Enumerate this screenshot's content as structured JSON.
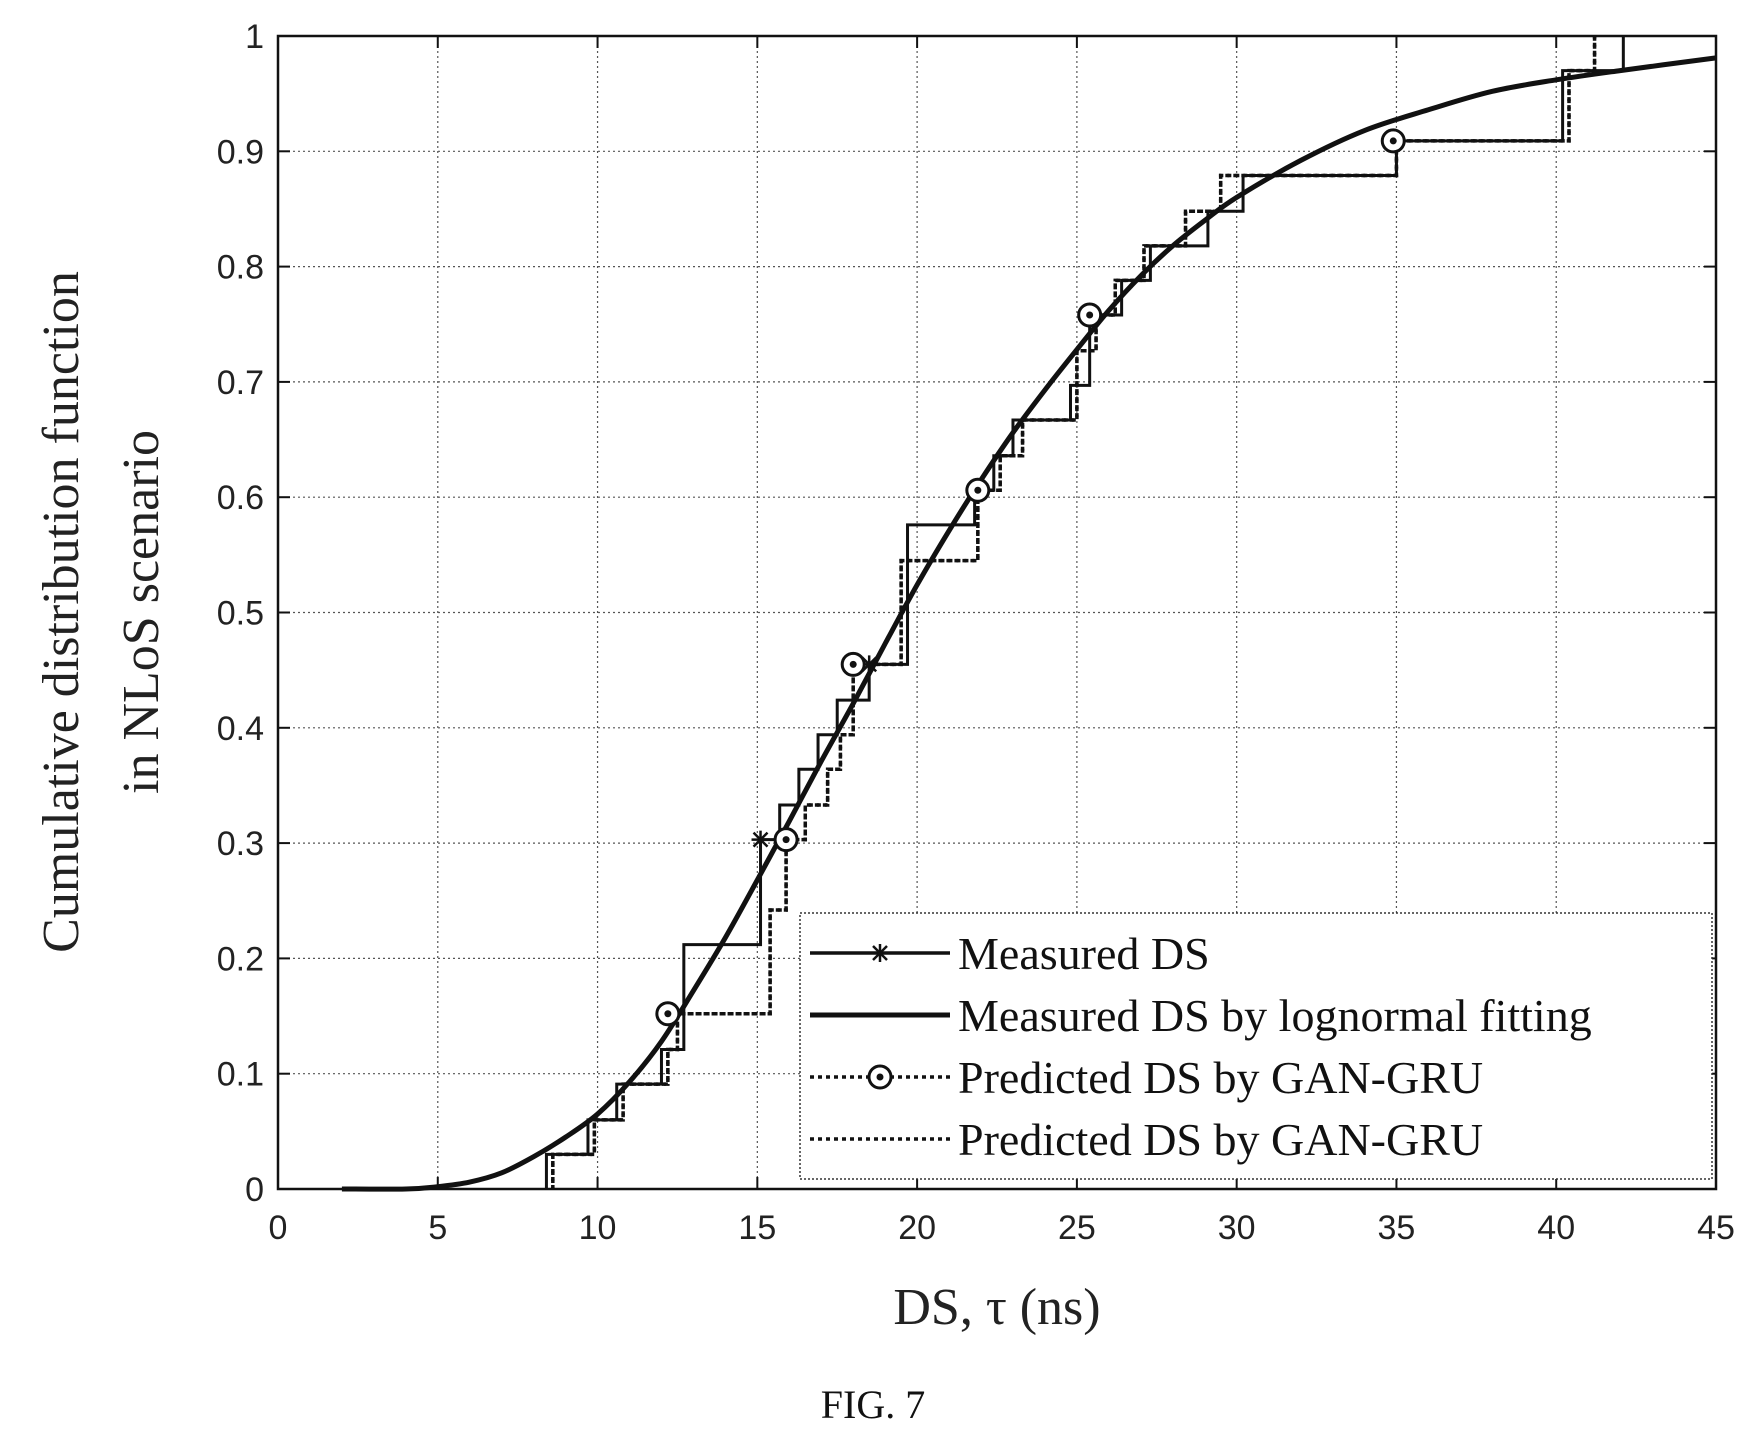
{
  "caption": "FIG. 7",
  "chart_data": {
    "type": "line",
    "title": "",
    "xlabel": "DS, τ (ns)",
    "ylabel_lines": [
      "Cumulative distribution function",
      "in NLoS scenario"
    ],
    "xlim": [
      0,
      45
    ],
    "ylim": [
      0,
      1
    ],
    "xticks": [
      0,
      5,
      10,
      15,
      20,
      25,
      30,
      35,
      40,
      45
    ],
    "yticks": [
      0,
      0.1,
      0.2,
      0.3,
      0.4,
      0.5,
      0.6,
      0.7,
      0.8,
      0.9,
      1
    ],
    "xtick_labels": [
      "0",
      "5",
      "10",
      "15",
      "20",
      "25",
      "30",
      "35",
      "40",
      "45"
    ],
    "ytick_labels": [
      "0",
      "0.1",
      "0.2",
      "0.3",
      "0.4",
      "0.5",
      "0.6",
      "0.7",
      "0.8",
      "0.9",
      "1"
    ],
    "grid": true,
    "legend_position": "bottom-right",
    "series": [
      {
        "name": "Measured DS",
        "style": "solid-step",
        "marker": "asterisk",
        "x": [
          8.4,
          9.7,
          10.6,
          12.0,
          12.7,
          15.1,
          15.7,
          16.3,
          16.9,
          17.5,
          18.5,
          19.7,
          21.8,
          22.4,
          23.0,
          24.8,
          25.4,
          26.4,
          27.3,
          29.1,
          30.2,
          35.0,
          40.2,
          42.1
        ],
        "y": [
          0.03,
          0.06,
          0.091,
          0.121,
          0.212,
          0.303,
          0.333,
          0.364,
          0.394,
          0.424,
          0.455,
          0.576,
          0.606,
          0.636,
          0.667,
          0.697,
          0.758,
          0.788,
          0.818,
          0.848,
          0.879,
          0.909,
          0.97,
          1.0
        ],
        "markers_x": [
          15.1,
          18.5
        ],
        "markers_y": [
          0.303,
          0.455
        ]
      },
      {
        "name": "Measured DS by lognormal fitting",
        "style": "solid-smooth",
        "x": [
          2,
          4,
          5,
          6,
          7,
          8,
          9,
          10,
          11,
          12,
          13,
          14,
          15,
          16,
          17,
          18,
          19,
          20,
          21,
          22,
          23,
          24,
          25,
          26,
          27,
          28,
          29,
          30,
          32,
          34,
          36,
          38,
          40,
          42,
          45
        ],
        "y": [
          0.0,
          0.0,
          0.002,
          0.006,
          0.014,
          0.028,
          0.045,
          0.065,
          0.093,
          0.128,
          0.172,
          0.218,
          0.268,
          0.319,
          0.371,
          0.421,
          0.473,
          0.524,
          0.571,
          0.615,
          0.656,
          0.693,
          0.728,
          0.762,
          0.792,
          0.818,
          0.84,
          0.86,
          0.892,
          0.918,
          0.936,
          0.952,
          0.962,
          0.97,
          0.981
        ]
      },
      {
        "name": "Predicted DS by GAN-GRU",
        "style": "dotted-step",
        "marker": "circle",
        "x": [
          8.6,
          9.9,
          10.8,
          12.2,
          12.5,
          15.4,
          15.9,
          16.5,
          17.2,
          17.6,
          18.0,
          19.5,
          21.9,
          22.6,
          23.3,
          25.0,
          25.6,
          26.2,
          27.1,
          28.4,
          29.5,
          35.0,
          40.4,
          41.2
        ],
        "y": [
          0.03,
          0.06,
          0.091,
          0.121,
          0.152,
          0.242,
          0.303,
          0.333,
          0.364,
          0.394,
          0.455,
          0.545,
          0.606,
          0.636,
          0.667,
          0.727,
          0.758,
          0.788,
          0.818,
          0.848,
          0.879,
          0.909,
          0.97,
          1.0
        ],
        "markers_x": [
          12.2,
          15.9,
          18.0,
          21.9,
          25.4,
          34.9
        ],
        "markers_y": [
          0.152,
          0.303,
          0.455,
          0.606,
          0.758,
          0.909
        ]
      },
      {
        "name": "Predicted DS by GAN-GRU",
        "style": "dotted-step",
        "x": [
          8.6,
          9.9,
          10.8,
          12.2,
          12.5,
          15.4,
          15.9,
          16.5,
          17.2,
          17.6,
          18.0,
          19.5,
          21.9,
          22.6,
          23.3,
          25.0,
          25.6,
          26.2,
          27.1,
          28.4,
          29.5,
          35.0,
          40.4,
          41.2
        ],
        "y": [
          0.03,
          0.06,
          0.091,
          0.121,
          0.152,
          0.242,
          0.303,
          0.333,
          0.364,
          0.394,
          0.455,
          0.545,
          0.606,
          0.636,
          0.667,
          0.727,
          0.758,
          0.788,
          0.818,
          0.848,
          0.879,
          0.909,
          0.97,
          1.0
        ]
      }
    ],
    "legend": {
      "entries": [
        "Measured DS",
        "Measured DS by lognormal fitting",
        "Predicted DS by GAN-GRU",
        "Predicted DS by GAN-GRU"
      ]
    }
  }
}
